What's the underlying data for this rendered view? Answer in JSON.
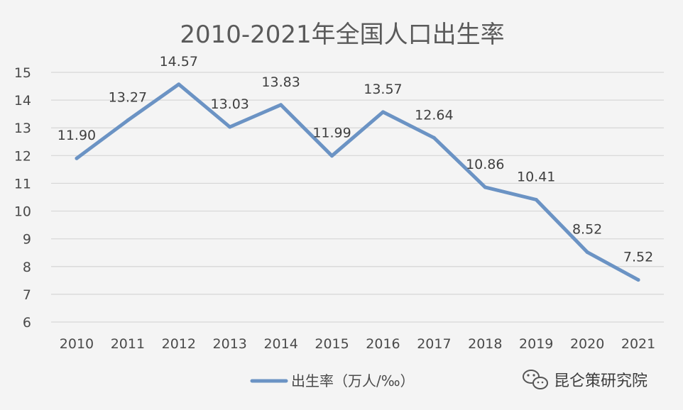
{
  "chart_data": {
    "type": "line",
    "title": "2010-2021年全国人口出生率",
    "categories": [
      "2010",
      "2011",
      "2012",
      "2013",
      "2014",
      "2015",
      "2016",
      "2017",
      "2018",
      "2019",
      "2020",
      "2021"
    ],
    "series": [
      {
        "name": "出生率（万人/‰）",
        "values": [
          11.9,
          13.27,
          14.57,
          13.03,
          13.83,
          11.99,
          13.57,
          12.64,
          10.86,
          10.41,
          8.52,
          7.52
        ],
        "labels": [
          "11.90",
          "13.27",
          "14.57",
          "13.03",
          "13.83",
          "11.99",
          "13.57",
          "12.64",
          "10.86",
          "10.41",
          "8.52",
          "7.52"
        ],
        "color": "#6b93c4"
      }
    ],
    "ylim": [
      6,
      15
    ],
    "yticks": [
      "6",
      "7",
      "8",
      "9",
      "10",
      "11",
      "12",
      "13",
      "14",
      "15"
    ],
    "grid": true,
    "legend_position": "bottom"
  },
  "watermark": {
    "text": "昆仑策研究院",
    "icon": "wechat-icon"
  }
}
